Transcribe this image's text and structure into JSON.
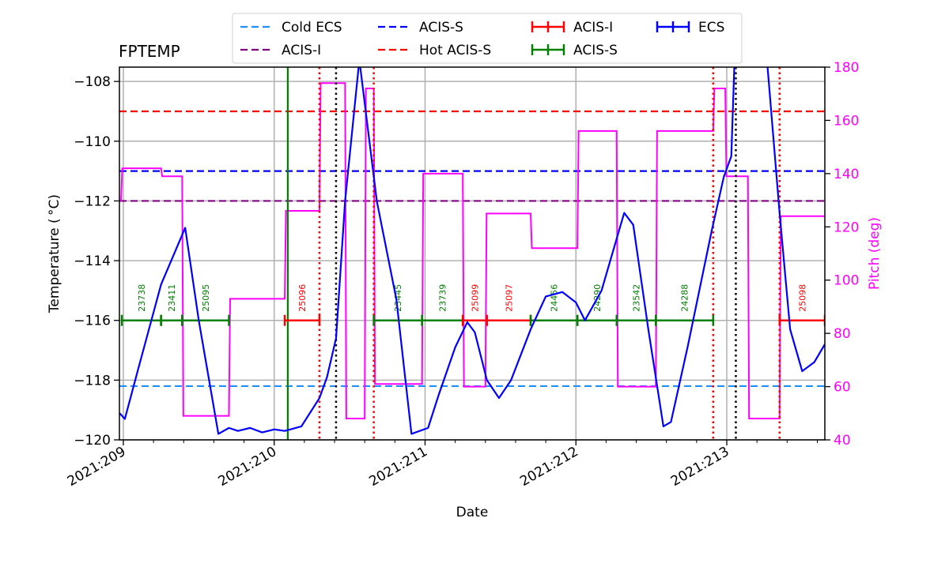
{
  "chart_data": {
    "type": "line",
    "title": "FPTEMP",
    "xlabel": "Date",
    "ylabel": "Temperature ($^\\circ$C)",
    "ylabel_display": "Temperature ($^\\circ$C)",
    "y2label": "Pitch (deg)",
    "xlim": [
      208.974,
      213.65
    ],
    "ylim": [
      -120,
      -107.52
    ],
    "y2lim": [
      40,
      180
    ],
    "grid": true,
    "legend_position": "top-center",
    "x_ticks": [
      {
        "value": 209,
        "label": "2021:209"
      },
      {
        "value": 210,
        "label": "2021:210"
      },
      {
        "value": 211,
        "label": "2021:211"
      },
      {
        "value": 212,
        "label": "2021:212"
      },
      {
        "value": 213,
        "label": "2021:213"
      }
    ],
    "y_ticks": [
      -120,
      -118,
      -116,
      -114,
      -112,
      -110,
      -108
    ],
    "y_tick_labels": [
      "−120",
      "−118",
      "−116",
      "−114",
      "−112",
      "−110",
      "−108"
    ],
    "y2_ticks": [
      40,
      60,
      80,
      100,
      120,
      140,
      160,
      180
    ],
    "y2_tick_labels": [
      "40",
      "60",
      "80",
      "100",
      "120",
      "140",
      "160",
      "180"
    ],
    "colors": {
      "temperature": "#0000ff",
      "pitch": "#ff00ff",
      "acis_i": "#ff0000",
      "acis_s": "#008000",
      "grid": "#b0b0b0"
    },
    "legend": [
      {
        "label": "Cold ECS",
        "style": "dashed",
        "color": "#1e90ff"
      },
      {
        "label": "ACIS-I",
        "style": "dashed",
        "color": "#800080"
      },
      {
        "label": "ACIS-S",
        "style": "dashed",
        "color": "#0000ff"
      },
      {
        "label": "Hot ACIS-S",
        "style": "dashed",
        "color": "#ff0000"
      },
      {
        "label": "ACIS-I",
        "style": "errorbar",
        "color": "#ff0000"
      },
      {
        "label": "ACIS-S",
        "style": "errorbar",
        "color": "#008000"
      },
      {
        "label": "ECS",
        "style": "errorbar",
        "color": "#0000ff"
      }
    ],
    "limit_lines": [
      {
        "name": "Cold ECS",
        "value": -118.2,
        "color": "#1e90ff"
      },
      {
        "name": "ACIS-I",
        "value": -112,
        "color": "#800080"
      },
      {
        "name": "ACIS-S",
        "value": -111,
        "color": "#0000ff"
      },
      {
        "name": "Hot ACIS-S",
        "value": -109,
        "color": "#ff0000"
      }
    ],
    "vertical_lines": [
      {
        "x": 210.09,
        "color": "#008000",
        "style": "solid"
      },
      {
        "x": 210.3,
        "color": "#ff0000",
        "style": "dotted"
      },
      {
        "x": 210.41,
        "color": "#000000",
        "style": "dotted"
      },
      {
        "x": 210.66,
        "color": "#ff0000",
        "style": "dotted"
      },
      {
        "x": 212.91,
        "color": "#ff0000",
        "style": "dotted"
      },
      {
        "x": 213.06,
        "color": "#000000",
        "style": "dotted"
      },
      {
        "x": 213.35,
        "color": "#ff0000",
        "style": "dotted"
      }
    ],
    "observations": [
      {
        "obsid": "23738",
        "instrument": "ACIS-S",
        "start": 208.99,
        "stop": 209.25
      },
      {
        "obsid": "23411",
        "instrument": "ACIS-S",
        "start": 209.25,
        "stop": 209.39
      },
      {
        "obsid": "25095",
        "instrument": "ACIS-S",
        "start": 209.39,
        "stop": 209.7
      },
      {
        "obsid": "25096",
        "instrument": "ACIS-I",
        "start": 210.07,
        "stop": 210.3
      },
      {
        "obsid": "23445",
        "instrument": "ACIS-S",
        "start": 210.66,
        "stop": 210.98
      },
      {
        "obsid": "23739",
        "instrument": "ACIS-S",
        "start": 210.98,
        "stop": 211.25
      },
      {
        "obsid": "25099",
        "instrument": "ACIS-I",
        "start": 211.25,
        "stop": 211.41
      },
      {
        "obsid": "25097",
        "instrument": "ACIS-I",
        "start": 211.41,
        "stop": 211.7
      },
      {
        "obsid": "24456",
        "instrument": "ACIS-S",
        "start": 211.7,
        "stop": 212.01
      },
      {
        "obsid": "24290",
        "instrument": "ACIS-S",
        "start": 212.01,
        "stop": 212.27
      },
      {
        "obsid": "23542",
        "instrument": "ACIS-S",
        "start": 212.27,
        "stop": 212.53
      },
      {
        "obsid": "24288",
        "instrument": "ACIS-S",
        "start": 212.53,
        "stop": 212.91
      },
      {
        "obsid": "25098",
        "instrument": "ACIS-I",
        "start": 213.35,
        "stop": 213.65
      }
    ],
    "obs_level": -116,
    "series": [
      {
        "key": "temperature",
        "axis": "left",
        "x": [
          208.974,
          209.01,
          209.1,
          209.25,
          209.41,
          209.5,
          209.63,
          209.7,
          209.76,
          209.84,
          209.92,
          210.0,
          210.07,
          210.18,
          210.3,
          210.35,
          210.41,
          210.47,
          210.56,
          210.57,
          210.68,
          210.81,
          210.91,
          211.02,
          211.09,
          211.2,
          211.28,
          211.33,
          211.41,
          211.49,
          211.57,
          211.7,
          211.8,
          211.91,
          212.0,
          212.06,
          212.17,
          212.32,
          212.38,
          212.48,
          212.58,
          212.63,
          212.74,
          212.9,
          212.98,
          213.03,
          213.05,
          213.27,
          213.35,
          213.42,
          213.5,
          213.58,
          213.65
        ],
        "y": [
          -119.1,
          -119.3,
          -117.6,
          -114.8,
          -112.9,
          -116.0,
          -119.8,
          -119.6,
          -119.7,
          -119.6,
          -119.75,
          -119.65,
          -119.7,
          -119.55,
          -118.6,
          -117.9,
          -116.6,
          -112.0,
          -107.5,
          -107.5,
          -112.0,
          -115.3,
          -119.8,
          -119.6,
          -118.5,
          -116.9,
          -116.06,
          -116.4,
          -118.0,
          -118.6,
          -118.0,
          -116.3,
          -115.2,
          -115.05,
          -115.4,
          -116.0,
          -115.0,
          -112.4,
          -112.8,
          -116.3,
          -119.55,
          -119.4,
          -116.9,
          -113.0,
          -111.2,
          -110.5,
          -107.5,
          -107.5,
          -112.4,
          -116.3,
          -117.7,
          -117.4,
          -116.8
        ]
      },
      {
        "key": "pitch",
        "axis": "right",
        "step": true,
        "x": [
          208.974,
          208.985,
          209.25,
          209.39,
          209.7,
          210.07,
          210.3,
          210.47,
          210.6,
          210.66,
          210.98,
          211.25,
          211.4,
          211.7,
          212.01,
          212.27,
          212.53,
          212.91,
          212.99,
          213.14,
          213.35,
          213.65
        ],
        "y": [
          130,
          142,
          139,
          49,
          93,
          126,
          174,
          48,
          172,
          61,
          140,
          60,
          125,
          112,
          156,
          60,
          156,
          172,
          139,
          48,
          124,
          124
        ]
      }
    ]
  }
}
